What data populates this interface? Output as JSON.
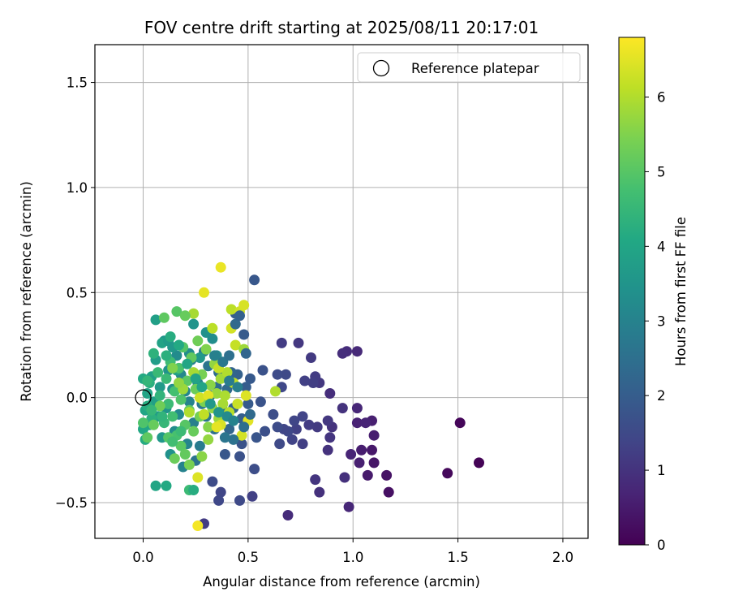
{
  "chart_data": {
    "type": "scatter",
    "title": "FOV centre drift starting at 2025/08/11 20:17:01",
    "xlabel": "Angular distance from reference (arcmin)",
    "ylabel": "Rotation from reference (arcmin)",
    "xlim": [
      -0.23,
      2.12
    ],
    "ylim": [
      -0.67,
      1.68
    ],
    "xticks": [
      0.0,
      0.5,
      1.0,
      1.5,
      2.0
    ],
    "xtick_labels": [
      "0.0",
      "0.5",
      "1.0",
      "1.5",
      "2.0"
    ],
    "yticks": [
      -0.5,
      0.0,
      0.5,
      1.0,
      1.5
    ],
    "ytick_labels": [
      "−0.5",
      "0.0",
      "0.5",
      "1.0",
      "1.5"
    ],
    "grid": true,
    "legend": {
      "placement": "upper right",
      "entries": [
        "Reference platepar"
      ]
    },
    "colorbar": {
      "label": "Hours from first FF file",
      "colormap": "viridis",
      "range": [
        0,
        6.8
      ],
      "ticks": [
        0,
        1,
        2,
        3,
        4,
        5,
        6
      ],
      "tick_labels": [
        "0",
        "1",
        "2",
        "3",
        "4",
        "5",
        "6"
      ]
    },
    "reference_marker": {
      "x": 0.0,
      "y": 0.0
    },
    "points": [
      [
        1.6,
        -0.31,
        0.05
      ],
      [
        1.51,
        -0.12,
        0.1
      ],
      [
        1.45,
        -0.36,
        0.15
      ],
      [
        1.17,
        -0.45,
        0.3
      ],
      [
        1.16,
        -0.37,
        0.35
      ],
      [
        1.1,
        -0.31,
        0.4
      ],
      [
        1.09,
        -0.25,
        0.45
      ],
      [
        1.07,
        -0.37,
        0.5
      ],
      [
        1.04,
        -0.25,
        0.55
      ],
      [
        1.03,
        -0.31,
        0.6
      ],
      [
        1.02,
        -0.12,
        0.65
      ],
      [
        0.99,
        -0.27,
        0.7
      ],
      [
        0.98,
        -0.52,
        0.75
      ],
      [
        1.1,
        -0.18,
        0.55
      ],
      [
        1.09,
        -0.11,
        0.6
      ],
      [
        1.06,
        -0.12,
        0.7
      ],
      [
        1.02,
        -0.05,
        0.75
      ],
      [
        1.02,
        0.22,
        0.8
      ],
      [
        0.97,
        0.22,
        0.85
      ],
      [
        0.95,
        0.21,
        0.9
      ],
      [
        0.96,
        -0.38,
        0.95
      ],
      [
        0.95,
        -0.05,
        1.0
      ],
      [
        0.89,
        0.02,
        0.9
      ],
      [
        0.9,
        -0.14,
        1.0
      ],
      [
        0.89,
        -0.19,
        1.05
      ],
      [
        0.88,
        -0.11,
        1.1
      ],
      [
        0.88,
        -0.25,
        1.0
      ],
      [
        0.84,
        -0.45,
        0.95
      ],
      [
        0.82,
        -0.39,
        1.05
      ],
      [
        0.84,
        0.07,
        1.1
      ],
      [
        0.83,
        -0.14,
        1.15
      ],
      [
        0.82,
        0.1,
        1.2
      ],
      [
        0.81,
        0.07,
        1.25
      ],
      [
        0.8,
        0.19,
        1.15
      ],
      [
        0.79,
        -0.13,
        1.2
      ],
      [
        0.77,
        0.08,
        1.3
      ],
      [
        0.76,
        -0.09,
        1.35
      ],
      [
        0.76,
        -0.22,
        1.25
      ],
      [
        0.74,
        0.26,
        1.1
      ],
      [
        0.73,
        -0.15,
        1.3
      ],
      [
        0.72,
        -0.11,
        1.4
      ],
      [
        0.71,
        -0.2,
        1.35
      ],
      [
        0.69,
        -0.56,
        0.85
      ],
      [
        0.69,
        -0.16,
        1.45
      ],
      [
        0.68,
        0.11,
        1.5
      ],
      [
        0.67,
        -0.15,
        1.4
      ],
      [
        0.66,
        0.26,
        1.2
      ],
      [
        0.66,
        0.05,
        1.45
      ],
      [
        0.65,
        -0.22,
        1.5
      ],
      [
        0.64,
        -0.14,
        1.55
      ],
      [
        0.64,
        0.11,
        1.55
      ],
      [
        0.62,
        -0.08,
        1.6
      ],
      [
        0.58,
        -0.16,
        1.65
      ],
      [
        0.57,
        0.13,
        1.7
      ],
      [
        0.56,
        -0.02,
        1.75
      ],
      [
        0.54,
        -0.19,
        1.8
      ],
      [
        0.53,
        0.56,
        1.85
      ],
      [
        0.53,
        -0.34,
        1.6
      ],
      [
        0.52,
        -0.47,
        1.3
      ],
      [
        0.51,
        0.09,
        1.9
      ],
      [
        0.5,
        -0.03,
        1.95
      ],
      [
        0.49,
        0.05,
        2.0
      ],
      [
        0.48,
        0.3,
        1.95
      ],
      [
        0.47,
        -0.22,
        1.75
      ],
      [
        0.47,
        -0.1,
        2.05
      ],
      [
        0.46,
        -0.28,
        1.7
      ],
      [
        0.46,
        -0.49,
        1.5
      ],
      [
        0.45,
        0.11,
        2.1
      ],
      [
        0.44,
        0.4,
        2.0
      ],
      [
        0.43,
        -0.05,
        2.15
      ],
      [
        0.42,
        0.12,
        2.2
      ],
      [
        0.41,
        -0.15,
        2.25
      ],
      [
        0.4,
        0.04,
        2.3
      ],
      [
        0.39,
        -0.27,
        1.85
      ],
      [
        0.38,
        -0.06,
        2.35
      ],
      [
        0.37,
        -0.45,
        1.4
      ],
      [
        0.36,
        0.12,
        2.4
      ],
      [
        0.35,
        0.05,
        2.45
      ],
      [
        0.33,
        -0.4,
        1.55
      ],
      [
        0.36,
        -0.49,
        1.45
      ],
      [
        0.29,
        -0.6,
        1.2
      ],
      [
        0.34,
        -0.15,
        2.5
      ],
      [
        0.32,
        0.01,
        2.55
      ],
      [
        0.31,
        0.15,
        2.6
      ],
      [
        0.3,
        -0.09,
        2.65
      ],
      [
        0.29,
        0.22,
        2.7
      ],
      [
        0.28,
        -0.03,
        2.75
      ],
      [
        0.27,
        -0.23,
        2.8
      ],
      [
        0.26,
        0.07,
        2.85
      ],
      [
        0.25,
        -0.3,
        2.6
      ],
      [
        0.24,
        -0.12,
        2.9
      ],
      [
        0.23,
        0.18,
        2.95
      ],
      [
        0.22,
        -0.02,
        3.0
      ],
      [
        0.21,
        -0.22,
        3.05
      ],
      [
        0.2,
        0.03,
        3.1
      ],
      [
        0.19,
        -0.33,
        3.0
      ],
      [
        0.18,
        0.11,
        3.15
      ],
      [
        0.17,
        -0.08,
        3.2
      ],
      [
        0.16,
        0.2,
        3.25
      ],
      [
        0.15,
        -0.16,
        3.3
      ],
      [
        0.14,
        0.04,
        3.35
      ],
      [
        0.13,
        -0.27,
        3.4
      ],
      [
        0.12,
        0.13,
        3.45
      ],
      [
        0.11,
        -0.05,
        3.5
      ],
      [
        0.1,
        0.27,
        3.55
      ],
      [
        0.09,
        -0.19,
        3.6
      ],
      [
        0.08,
        0.05,
        3.65
      ],
      [
        0.07,
        -0.09,
        3.7
      ],
      [
        0.06,
        0.18,
        3.75
      ],
      [
        0.05,
        -0.02,
        3.8
      ],
      [
        0.04,
        0.1,
        3.85
      ],
      [
        0.03,
        -0.13,
        3.9
      ],
      [
        0.02,
        0.02,
        3.95
      ],
      [
        0.01,
        -0.06,
        4.0
      ],
      [
        0.0,
        -0.15,
        4.05
      ],
      [
        0.0,
        0.09,
        4.1
      ],
      [
        0.01,
        -0.2,
        4.15
      ],
      [
        0.02,
        -0.04,
        4.2
      ],
      [
        0.03,
        0.07,
        4.25
      ],
      [
        0.04,
        -0.1,
        4.3
      ],
      [
        0.05,
        0.21,
        4.35
      ],
      [
        0.06,
        0.37,
        3.8
      ],
      [
        0.06,
        -0.42,
        4.0
      ],
      [
        0.11,
        -0.42,
        4.1
      ],
      [
        0.09,
        0.26,
        3.9
      ],
      [
        0.12,
        0.27,
        3.7
      ],
      [
        0.14,
        0.24,
        3.6
      ],
      [
        0.16,
        0.13,
        3.8
      ],
      [
        0.22,
        0.21,
        3.3
      ],
      [
        0.24,
        0.35,
        3.5
      ],
      [
        0.27,
        0.19,
        3.6
      ],
      [
        0.3,
        0.31,
        3.4
      ],
      [
        0.33,
        0.28,
        3.3
      ],
      [
        0.35,
        0.2,
        3.2
      ],
      [
        0.22,
        -0.44,
        4.6
      ],
      [
        0.24,
        -0.44,
        4.2
      ],
      [
        0.08,
        0.01,
        4.4
      ],
      [
        0.1,
        -0.12,
        4.5
      ],
      [
        0.11,
        0.09,
        4.55
      ],
      [
        0.12,
        -0.03,
        4.6
      ],
      [
        0.13,
        0.17,
        4.65
      ],
      [
        0.14,
        -0.09,
        4.7
      ],
      [
        0.15,
        0.03,
        4.75
      ],
      [
        0.16,
        -0.18,
        4.8
      ],
      [
        0.17,
        0.14,
        4.85
      ],
      [
        0.18,
        -0.01,
        4.9
      ],
      [
        0.19,
        0.24,
        4.95
      ],
      [
        0.2,
        -0.13,
        5.0
      ],
      [
        0.21,
        0.08,
        5.05
      ],
      [
        0.22,
        -0.06,
        5.1
      ],
      [
        0.23,
        0.19,
        5.15
      ],
      [
        0.24,
        -0.16,
        5.2
      ],
      [
        0.25,
        0.04,
        5.25
      ],
      [
        0.26,
        0.27,
        5.3
      ],
      [
        0.27,
        -0.09,
        5.35
      ],
      [
        0.28,
        0.11,
        5.4
      ],
      [
        0.29,
        -0.02,
        5.45
      ],
      [
        0.3,
        0.23,
        5.5
      ],
      [
        0.31,
        -0.14,
        5.55
      ],
      [
        0.32,
        0.06,
        5.6
      ],
      [
        0.33,
        -0.05,
        5.65
      ],
      [
        0.34,
        0.16,
        5.7
      ],
      [
        0.35,
        0.02,
        5.75
      ],
      [
        0.36,
        -0.1,
        5.8
      ],
      [
        0.37,
        0.09,
        5.85
      ],
      [
        0.38,
        -0.03,
        5.9
      ],
      [
        0.39,
        0.01,
        5.95
      ],
      [
        0.4,
        0.12,
        6.0
      ],
      [
        0.41,
        -0.07,
        6.05
      ],
      [
        0.42,
        0.42,
        6.1
      ],
      [
        0.43,
        0.07,
        6.15
      ],
      [
        0.44,
        0.25,
        6.2
      ],
      [
        0.45,
        -0.03,
        6.25
      ],
      [
        0.46,
        0.41,
        6.3
      ],
      [
        0.47,
        -0.18,
        6.35
      ],
      [
        0.48,
        0.44,
        6.4
      ],
      [
        0.49,
        0.01,
        6.45
      ],
      [
        0.5,
        -0.11,
        6.5
      ],
      [
        0.42,
        0.33,
        6.35
      ],
      [
        0.37,
        0.62,
        6.6
      ],
      [
        0.29,
        0.5,
        6.55
      ],
      [
        0.26,
        -0.38,
        6.45
      ],
      [
        0.26,
        -0.61,
        6.7
      ],
      [
        0.63,
        0.03,
        6.0
      ],
      [
        0.48,
        0.23,
        5.8
      ],
      [
        0.24,
        0.4,
        5.9
      ],
      [
        0.1,
        0.38,
        5.1
      ],
      [
        0.16,
        0.41,
        5.0
      ],
      [
        0.2,
        0.39,
        5.2
      ],
      [
        0.36,
        0.14,
        6.2
      ],
      [
        0.33,
        0.33,
        6.1
      ],
      [
        0.22,
        -0.32,
        5.4
      ],
      [
        0.28,
        -0.28,
        5.6
      ],
      [
        0.31,
        -0.2,
        5.7
      ],
      [
        0.27,
        0.0,
        6.3
      ],
      [
        0.37,
        -0.13,
        6.4
      ],
      [
        0.35,
        -0.14,
        6.55
      ],
      [
        0.29,
        -0.08,
        6.15
      ],
      [
        0.22,
        -0.07,
        6.0
      ],
      [
        0.31,
        0.01,
        6.5
      ],
      [
        0.19,
        0.04,
        5.8
      ],
      [
        0.24,
        0.12,
        5.9
      ],
      [
        0.17,
        0.07,
        5.7
      ],
      [
        0.14,
        0.14,
        5.5
      ],
      [
        0.08,
        -0.04,
        5.3
      ],
      [
        0.05,
        -0.13,
        5.2
      ],
      [
        0.02,
        -0.19,
        5.1
      ],
      [
        0.0,
        -0.12,
        4.9
      ],
      [
        0.12,
        -0.19,
        4.95
      ],
      [
        0.18,
        -0.23,
        5.05
      ],
      [
        0.2,
        -0.27,
        5.15
      ],
      [
        0.15,
        -0.29,
        5.25
      ],
      [
        0.14,
        -0.21,
        4.7
      ],
      [
        0.18,
        -0.16,
        4.6
      ],
      [
        0.09,
        -0.09,
        4.4
      ],
      [
        0.04,
        -0.06,
        4.5
      ],
      [
        0.02,
        0.08,
        4.45
      ],
      [
        0.07,
        0.12,
        4.55
      ],
      [
        0.11,
        0.2,
        4.3
      ],
      [
        0.13,
        0.29,
        4.2
      ],
      [
        0.17,
        0.25,
        4.1
      ],
      [
        0.21,
        0.16,
        4.0
      ],
      [
        0.25,
        0.09,
        3.9
      ],
      [
        0.28,
        0.05,
        3.95
      ],
      [
        0.32,
        -0.03,
        3.6
      ],
      [
        0.36,
        -0.07,
        3.5
      ],
      [
        0.4,
        -0.09,
        3.2
      ],
      [
        0.43,
        -0.11,
        3.0
      ],
      [
        0.45,
        0.05,
        2.9
      ],
      [
        0.41,
        0.08,
        2.8
      ],
      [
        0.38,
        0.17,
        2.7
      ],
      [
        0.34,
        0.2,
        2.95
      ],
      [
        0.41,
        0.2,
        2.5
      ],
      [
        0.44,
        0.35,
        2.3
      ],
      [
        0.46,
        0.39,
        2.1
      ],
      [
        0.49,
        0.21,
        2.2
      ],
      [
        0.51,
        -0.08,
        2.35
      ],
      [
        0.48,
        -0.14,
        2.45
      ],
      [
        0.43,
        -0.2,
        2.55
      ],
      [
        0.39,
        -0.19,
        2.65
      ]
    ]
  }
}
